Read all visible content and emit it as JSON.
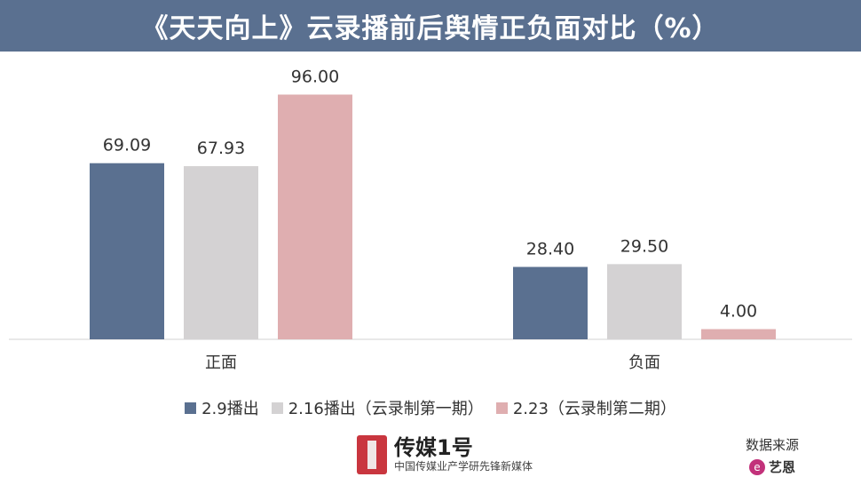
{
  "title": "《天天向上》云录播前后舆情正负面对比（%）",
  "chart_data": {
    "type": "bar",
    "categories": [
      "正面",
      "负面"
    ],
    "series": [
      {
        "name": "2.9播出",
        "values": [
          69.09,
          28.4
        ],
        "color": "#5a7090"
      },
      {
        "name": "2.16播出（云录制第一期）",
        "values": [
          67.93,
          29.5
        ],
        "color": "#d4d2d3"
      },
      {
        "name": "2.23（云录制第二期）",
        "values": [
          96.0,
          4.0
        ],
        "color": "#dfaeb0"
      }
    ],
    "ylim": [
      0,
      100
    ],
    "grid": false,
    "legend": "bottom",
    "data_labels": [
      "69.09",
      "67.93",
      "96.00",
      "28.40",
      "29.50",
      "4.00"
    ]
  },
  "logo": {
    "name": "传媒1号",
    "subtitle": "中国传媒业产学研先锋新媒体"
  },
  "source": {
    "label": "数据来源",
    "brand_mark": "e",
    "brand_name": "艺恩"
  }
}
